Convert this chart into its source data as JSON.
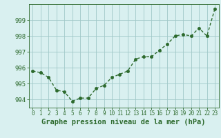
{
  "x": [
    0,
    1,
    2,
    3,
    4,
    5,
    6,
    7,
    8,
    9,
    10,
    11,
    12,
    13,
    14,
    15,
    16,
    17,
    18,
    19,
    20,
    21,
    22,
    23
  ],
  "y": [
    995.8,
    995.7,
    995.4,
    994.6,
    994.5,
    993.9,
    994.1,
    994.1,
    994.7,
    994.9,
    995.4,
    995.6,
    995.8,
    996.55,
    996.7,
    996.7,
    997.1,
    997.5,
    998.0,
    998.1,
    998.0,
    998.5,
    998.0,
    999.7
  ],
  "line_color": "#2d6a2d",
  "marker_color": "#2d6a2d",
  "bg_color": "#d9f0f0",
  "grid_color": "#a0c8c8",
  "xlabel": "Graphe pression niveau de la mer (hPa)",
  "xlabel_fontsize": 7.5,
  "ylim": [
    993.5,
    1000.0
  ],
  "xlim": [
    -0.5,
    23.5
  ],
  "yticks": [
    994,
    995,
    996,
    997,
    998,
    999
  ],
  "ytick_labels": [
    "994",
    "995",
    "996",
    "997",
    "998",
    "999"
  ],
  "xtick_labels": [
    "0",
    "1",
    "2",
    "3",
    "4",
    "5",
    "6",
    "7",
    "8",
    "9",
    "10",
    "11",
    "12",
    "13",
    "14",
    "15",
    "16",
    "17",
    "18",
    "19",
    "20",
    "21",
    "22",
    "23"
  ],
  "tick_color": "#2d6a2d",
  "axis_color": "#2d6a2d",
  "line_width": 1.0,
  "marker_size": 3.0
}
